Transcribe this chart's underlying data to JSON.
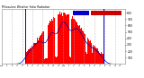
{
  "title": "Milwaukee Weather Solar Radiation & Day Average per Minute (Today)",
  "bar_color": "#ff0000",
  "avg_color": "#0000aa",
  "background_color": "#ffffff",
  "legend_color_blue": "#0000cc",
  "legend_color_red": "#cc0000",
  "ylim": [
    0,
    850
  ],
  "ytick_values": [
    100,
    200,
    300,
    400,
    500,
    600,
    700,
    800
  ],
  "grid_color": "#aaaaaa",
  "vline_color": "#0000cc",
  "num_bars": 288,
  "sunrise_idx": 55,
  "sunset_idx": 238,
  "peak_idx": 144,
  "sigma": 50
}
